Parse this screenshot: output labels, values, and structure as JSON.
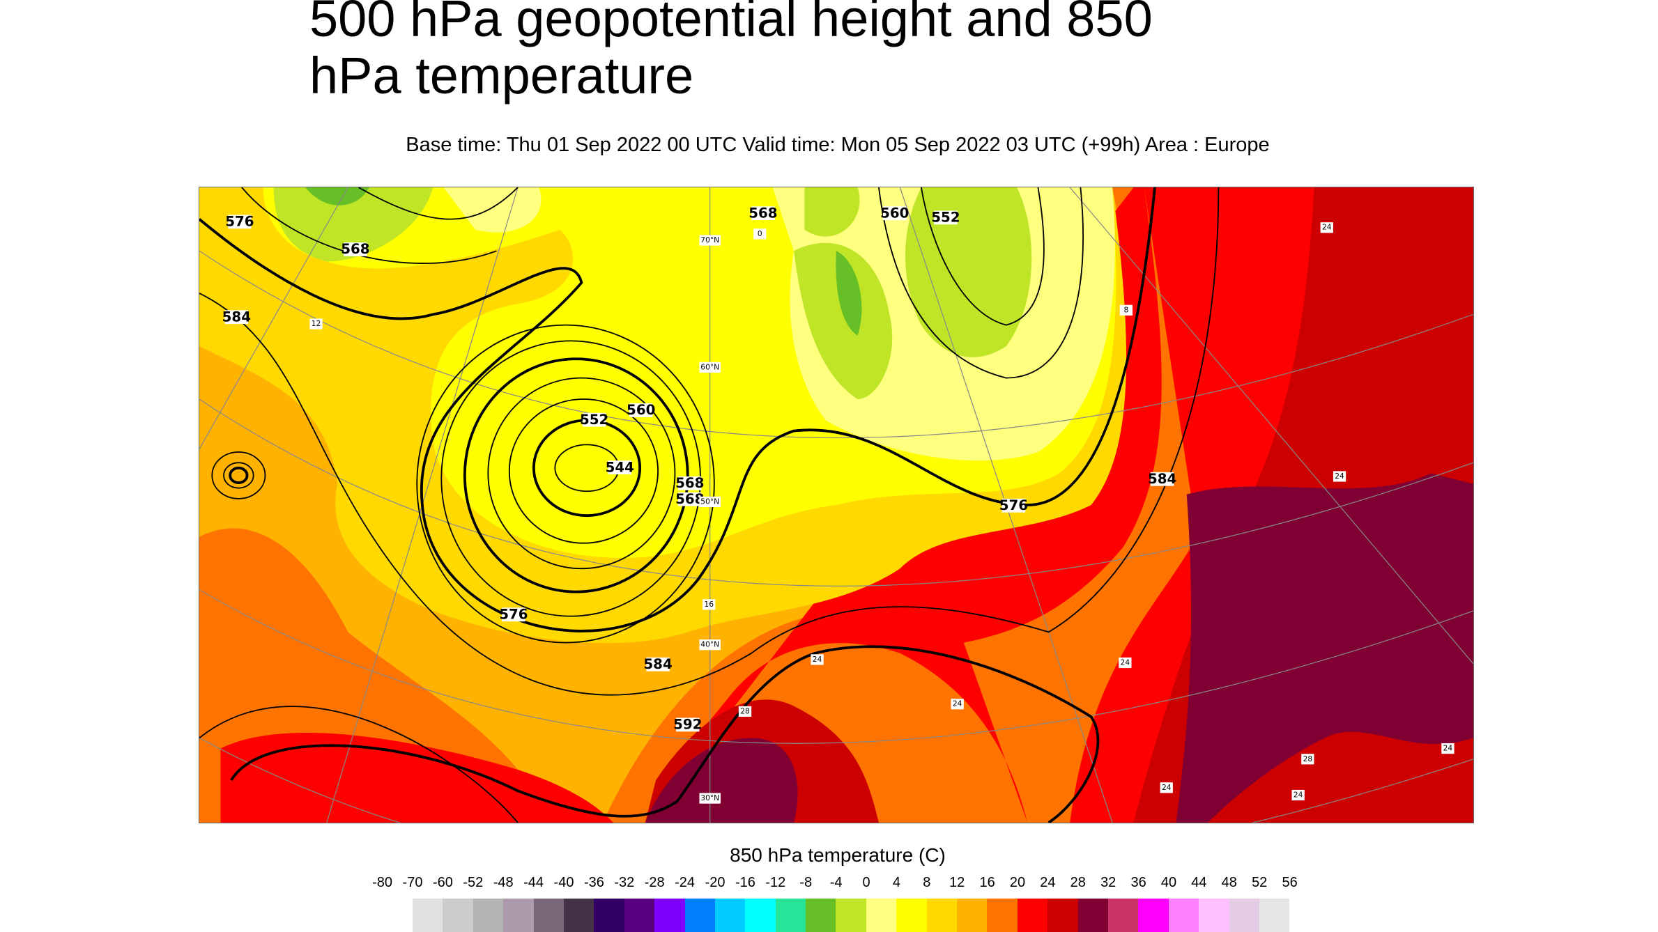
{
  "header": {
    "title": "500 hPa geopotential height and 850 hPa temperature",
    "subtitle": "Base time: Thu 01 Sep 2022 00 UTC Valid time: Mon 05 Sep 2022 03 UTC (+99h) Area : Europe"
  },
  "map": {
    "area": "Europe",
    "height_contour_labels": [
      "576",
      "568",
      "584",
      "568",
      "560",
      "552",
      "568",
      "552",
      "560",
      "544",
      "568",
      "576",
      "576",
      "584",
      "584",
      "592"
    ],
    "temperature_labels": [
      "12",
      "0",
      "8",
      "16",
      "24",
      "24",
      "24",
      "28",
      "24",
      "24",
      "24",
      "24",
      "28",
      "24"
    ],
    "latitude_labels": [
      "70°N",
      "60°N",
      "50°N",
      "40°N",
      "30°N"
    ]
  },
  "colorbar": {
    "title": "850 hPa temperature (C)",
    "ticks": [
      "-80",
      "-70",
      "-60",
      "-52",
      "-48",
      "-44",
      "-40",
      "-36",
      "-32",
      "-28",
      "-24",
      "-20",
      "-16",
      "-12",
      "-8",
      "-4",
      "0",
      "4",
      "8",
      "12",
      "16",
      "20",
      "24",
      "28",
      "32",
      "36",
      "40",
      "44",
      "48",
      "52",
      "56"
    ],
    "colors": [
      "#e0e0e0",
      "#cccccc",
      "#b3b3b3",
      "#ad9aad",
      "#7a687a",
      "#443347",
      "#330066",
      "#590080",
      "#8000ff",
      "#0080ff",
      "#00ccff",
      "#00ffff",
      "#26e599",
      "#66bf26",
      "#bfe526",
      "#ffff80",
      "#ffff00",
      "#ffd900",
      "#ffb300",
      "#ff7300",
      "#ff0000",
      "#cc0000",
      "#800033",
      "#cc3366",
      "#ff00ff",
      "#ff80ff",
      "#ffbfff",
      "#e5cce5",
      "#e5e5e5"
    ]
  }
}
